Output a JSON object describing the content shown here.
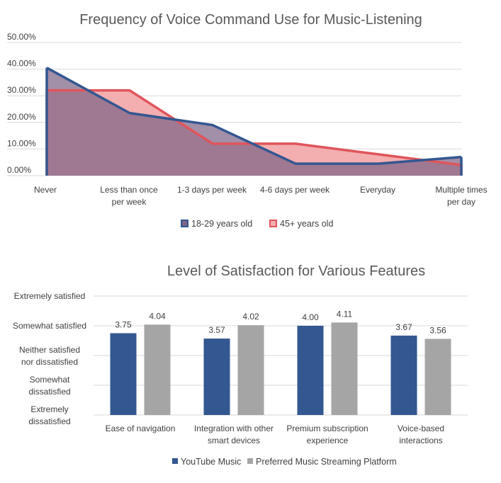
{
  "chart_data": [
    {
      "type": "area",
      "title": "Frequency of Voice Command Use for Music-Listening",
      "categories": [
        "Never",
        "Less than once per week",
        "1-3 days per week",
        "4-6 days per week",
        "Everyday",
        "Multiple times per day"
      ],
      "category_lines": [
        [
          "Never"
        ],
        [
          "Less than once",
          "per week"
        ],
        [
          "1-3 days per week"
        ],
        [
          "4-6 days per week"
        ],
        [
          "Everyday"
        ],
        [
          "Multiple times",
          "per day"
        ]
      ],
      "y_ticks": [
        "0.00%",
        "10.00%",
        "20.00%",
        "30.00%",
        "40.00%",
        "50.00%"
      ],
      "ylim": [
        0,
        50
      ],
      "grid": true,
      "legend_position": "bottom",
      "series": [
        {
          "name": "45+ years old",
          "values": [
            32,
            32,
            12,
            12,
            8,
            4
          ],
          "color": "#e0555b",
          "fill": "#f3aeb0"
        },
        {
          "name": "18-29 years old",
          "values": [
            40.5,
            23.5,
            19,
            4.5,
            4.5,
            7
          ],
          "color": "#335791",
          "fill": "#7e6486"
        }
      ],
      "legend_order": [
        "18-29 years old",
        "45+ years old"
      ]
    },
    {
      "type": "bar",
      "title": "Level of Satisfaction for Various Features",
      "categories": [
        "Ease of navigation",
        "Integration with other smart devices",
        "Premium subscription experience",
        "Voice-based interactions"
      ],
      "category_lines": [
        [
          "Ease of navigation"
        ],
        [
          "Integration with other",
          "smart devices"
        ],
        [
          "Premium subscription",
          "experience"
        ],
        [
          "Voice-based",
          "interactions"
        ]
      ],
      "y_labels": [
        [
          "Extremely",
          "dissatisfied"
        ],
        [
          "Somewhat",
          "dissatisfied"
        ],
        [
          "Neither satisfied",
          "nor dissatisfied"
        ],
        [
          "Somewhat satisfied"
        ],
        [
          "Extremely satisfied"
        ]
      ],
      "ylim": [
        1,
        5
      ],
      "grid": true,
      "legend_position": "bottom",
      "series": [
        {
          "name": "YouTube Music",
          "values": [
            3.75,
            3.57,
            4.0,
            3.67
          ],
          "labels": [
            "3.75",
            "3.57",
            "4.00",
            "3.67"
          ],
          "color": "#335791"
        },
        {
          "name": "Preferred Music Streaming Platform",
          "values": [
            4.04,
            4.02,
            4.11,
            3.56
          ],
          "labels": [
            "4.04",
            "4.02",
            "4.11",
            "3.56"
          ],
          "color": "#a5a5a5"
        }
      ]
    }
  ]
}
